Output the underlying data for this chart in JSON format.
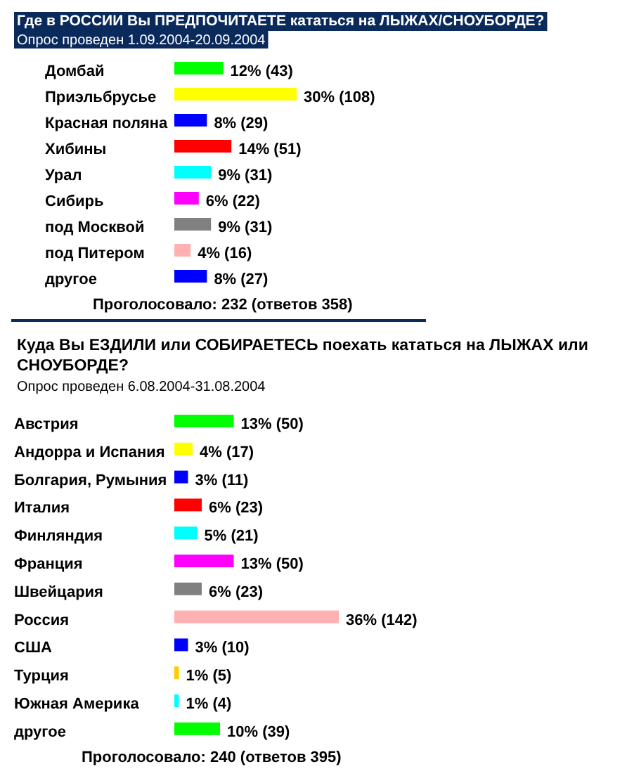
{
  "chart_data": [
    {
      "type": "bar",
      "orientation": "horizontal",
      "title": "Где в РОССИИ Вы ПРЕДПОЧИТАЕТЕ кататься на ЛЫЖАХ/СНОУБОРДЕ?",
      "subtitle": "Опрос проведен 1.09.2004-20.09.2004",
      "categories": [
        "Домбай",
        "Приэльбрусье",
        "Красная поляна",
        "Хибины",
        "Урал",
        "Сибирь",
        "под Москвой",
        "под Питером",
        "другое"
      ],
      "values": [
        12,
        30,
        8,
        14,
        9,
        6,
        9,
        4,
        8
      ],
      "colors": [
        "#00ff00",
        "#ffff00",
        "#0000ff",
        "#ff0000",
        "#00ffff",
        "#ff00ff",
        "#808080",
        "#ffb0b0",
        "#0000ff"
      ],
      "value_labels": [
        "12% (43)",
        "30% (108)",
        "8% (29)",
        "14% (51)",
        "9% (31)",
        "6% (22)",
        "9% (31)",
        "4% (16)",
        "8% (27)"
      ],
      "annotations": [
        "Проголосовало: 232 (ответов 358)"
      ]
    },
    {
      "type": "bar",
      "orientation": "horizontal",
      "title": "Куда Вы ЕЗДИЛИ или СОБИРАЕТЕСЬ поехать кататься на ЛЫЖАХ или СНОУБОРДЕ?",
      "subtitle": "Опрос проведен 6.08.2004-31.08.2004",
      "categories": [
        "Австрия",
        "Андорра и Испания",
        "Болгария, Румыния",
        "Италия",
        "Финляндия",
        "Франция",
        "Швейцария",
        "Россия",
        "США",
        "Турция",
        "Южная Америка",
        "другое"
      ],
      "values": [
        13,
        4,
        3,
        6,
        5,
        13,
        6,
        36,
        3,
        1,
        1,
        10
      ],
      "colors": [
        "#00ff00",
        "#ffff00",
        "#0000ff",
        "#ff0000",
        "#00ffff",
        "#ff00ff",
        "#808080",
        "#ffb0b0",
        "#0000ff",
        "#ffcc00",
        "#00ffff",
        "#00ff00"
      ],
      "value_labels": [
        "13% (50)",
        "4% (17)",
        "3% (11)",
        "6% (23)",
        "5% (21)",
        "13% (50)",
        "6% (23)",
        "36% (142)",
        "3% (10)",
        "1% (5)",
        "1% (4)",
        "10% (39)"
      ],
      "annotations": [
        "Проголосовало: 240 (ответов 395)"
      ]
    }
  ]
}
